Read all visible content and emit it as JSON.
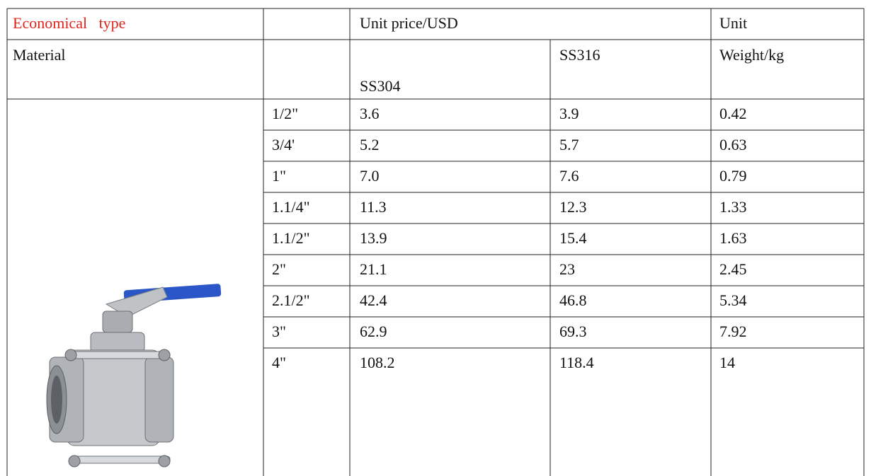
{
  "header": {
    "title": "Economical   type",
    "price_label": "Unit price/USD",
    "unit_label": "Unit"
  },
  "subheader": {
    "material": "Material",
    "ss304": "SS304",
    "ss316": "SS316",
    "weight": "Weight/kg"
  },
  "table": {
    "rows": [
      [
        "1/2\"",
        "3.6",
        "3.9",
        "0.42"
      ],
      [
        "3/4'",
        "5.2",
        "5.7",
        "0.63"
      ],
      [
        "1\"",
        "7.0",
        "7.6",
        "0.79"
      ],
      [
        "1.1/4\"",
        "11.3",
        "12.3",
        "1.33"
      ],
      [
        "1.1/2\"",
        "13.9",
        "15.4",
        "1.63"
      ],
      [
        "2\"",
        "21.1",
        "23",
        "2.45"
      ],
      [
        "2.1/2\"",
        "42.4",
        "46.8",
        "5.34"
      ],
      [
        "3\"",
        "62.9",
        "69.3",
        "7.92"
      ],
      [
        "4\"",
        "108.2",
        "118.4",
        "14"
      ]
    ]
  }
}
